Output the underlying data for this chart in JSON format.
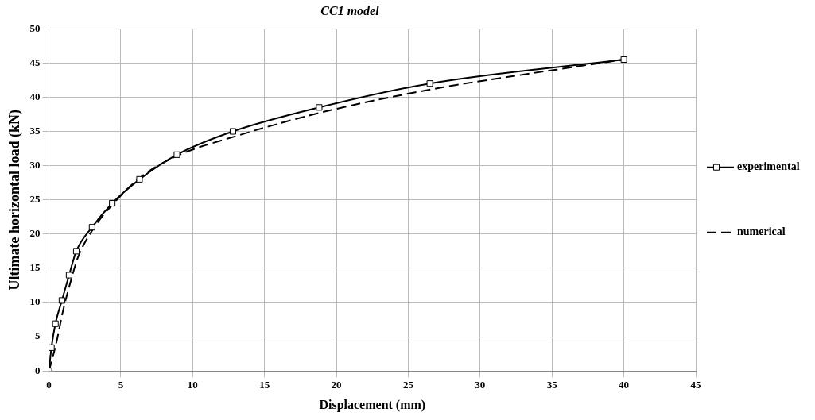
{
  "chart_data": {
    "type": "line",
    "title": "CC1 model",
    "xlabel": "Displacement (mm)",
    "ylabel": "Ultimate horizontal load (kN)",
    "xlim": [
      0,
      45
    ],
    "xticks": [
      0,
      5,
      10,
      15,
      20,
      25,
      30,
      35,
      40,
      45
    ],
    "ylim": [
      0,
      50
    ],
    "yticks": [
      0,
      5,
      10,
      15,
      20,
      25,
      30,
      35,
      40,
      45,
      50
    ],
    "grid": true,
    "legend": "right",
    "series": [
      {
        "name": "experimental",
        "color": "#000000",
        "marker": "square",
        "line_style": "solid",
        "x": [
          0,
          0.17,
          0.45,
          0.9,
          1.4,
          1.9,
          3.0,
          4.4,
          6.3,
          8.9,
          12.8,
          18.8,
          26.5,
          40
        ],
        "values": [
          0,
          3.4,
          6.9,
          10.3,
          14,
          17.5,
          21,
          24.5,
          28,
          31.6,
          35,
          38.5,
          42,
          45.5
        ]
      },
      {
        "name": "numerical",
        "color": "#000000",
        "marker": "none",
        "line_style": "dashed",
        "x": [
          0,
          0.5,
          1,
          1.5,
          2,
          3,
          4.5,
          6.5,
          9,
          13,
          19,
          27,
          33,
          40
        ],
        "values": [
          0,
          4,
          9,
          13,
          16.5,
          20.5,
          24.5,
          28.5,
          31.5,
          34.3,
          37.8,
          41.3,
          43.3,
          45.5
        ]
      }
    ]
  }
}
